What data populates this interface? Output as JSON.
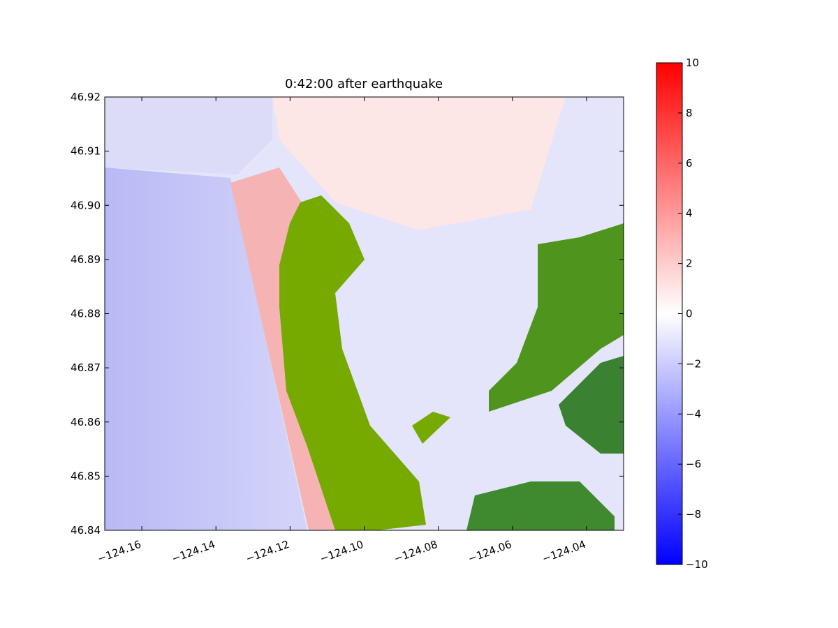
{
  "chart_data": {
    "type": "heatmap",
    "title": "0:42:00 after earthquake",
    "xlim": [
      -124.17,
      -124.03
    ],
    "xticks": [
      {
        "value": -124.16,
        "label": "−124.16"
      },
      {
        "value": -124.14,
        "label": "−124.14"
      },
      {
        "value": -124.12,
        "label": "−124.12"
      },
      {
        "value": -124.1,
        "label": "−124.10"
      },
      {
        "value": -124.08,
        "label": "−124.08"
      },
      {
        "value": -124.06,
        "label": "−124.06"
      },
      {
        "value": -124.04,
        "label": "−124.04"
      }
    ],
    "ylim": [
      46.84,
      46.92
    ],
    "yticks": [
      46.84,
      46.85,
      46.86,
      46.87,
      46.88,
      46.89,
      {
        "value": 46.9,
        "label": "46.90"
      },
      46.91,
      46.92
    ],
    "colorbar": {
      "lim": [
        -10,
        10
      ],
      "colors": [
        "#0000ff",
        "#ffffff",
        "#ff0000"
      ],
      "ticks": [
        {
          "value": -10,
          "label": "−10"
        },
        {
          "value": -8,
          "label": "−8"
        },
        {
          "value": -6,
          "label": "−6"
        },
        {
          "value": -4,
          "label": "−4"
        },
        {
          "value": -2,
          "label": "−2"
        },
        0,
        2,
        4,
        6,
        8,
        10
      ]
    }
  }
}
